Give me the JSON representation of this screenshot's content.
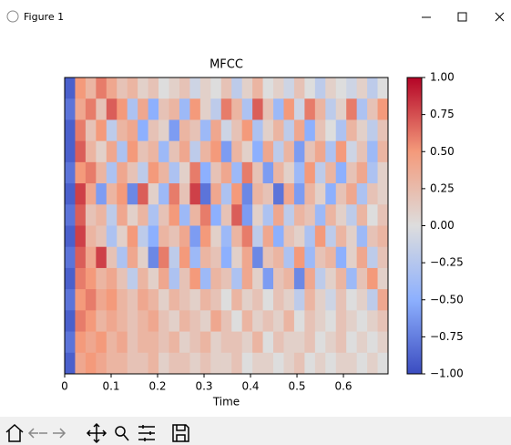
{
  "window_title": "Figure 1",
  "chart_data": {
    "type": "heatmap",
    "title": "MFCC",
    "x_label": "Time",
    "colormap": "coolwarm",
    "xlim": [
      0,
      0.696
    ],
    "xticks": [
      0,
      0.1,
      0.2,
      0.3,
      0.4,
      0.5,
      0.6
    ],
    "clim": [
      -1,
      1
    ],
    "cticks": [
      {
        "value": -1,
        "label": "−1.00"
      },
      {
        "value": -0.75,
        "label": "−0.75"
      },
      {
        "value": -0.5,
        "label": "−0.50"
      },
      {
        "value": -0.25,
        "label": "−0.25"
      },
      {
        "value": 0,
        "label": "0.00"
      },
      {
        "value": 0.25,
        "label": "0.25"
      },
      {
        "value": 0.5,
        "label": "0.50"
      },
      {
        "value": 0.75,
        "label": "0.75"
      },
      {
        "value": 1,
        "label": "1.00"
      }
    ],
    "z": [
      [
        -0.9,
        0.5,
        0.3,
        0.6,
        0.4,
        0.2,
        0.3,
        0.1,
        0.2,
        0.0,
        0.1,
        0.2,
        -0.1,
        0.1,
        0.0,
        0.2,
        -0.2,
        0.1,
        0.3,
        0.0,
        0.1,
        -0.1,
        0.2,
        0.0,
        -0.2,
        0.1,
        0.0,
        -0.1,
        0.1,
        -0.2,
        0.0
      ],
      [
        -0.8,
        0.4,
        0.6,
        0.2,
        0.7,
        0.5,
        -0.3,
        0.4,
        -0.5,
        0.2,
        0.3,
        -0.4,
        0.5,
        0.1,
        -0.2,
        0.6,
        0.3,
        -0.3,
        0.7,
        0.2,
        -0.4,
        0.5,
        -0.1,
        0.6,
        0.3,
        -0.2,
        0.1,
        0.6,
        -0.3,
        0.2,
        0.5
      ],
      [
        -0.9,
        0.6,
        0.2,
        0.5,
        -0.2,
        0.3,
        0.4,
        -0.5,
        0.2,
        0.1,
        -0.6,
        0.3,
        0.2,
        -0.4,
        0.4,
        -0.1,
        0.2,
        0.5,
        -0.3,
        0.1,
        0.3,
        -0.2,
        0.4,
        -0.5,
        0.2,
        0.0,
        -0.3,
        0.3,
        0.1,
        -0.2,
        0.2
      ],
      [
        -0.9,
        0.7,
        0.3,
        0.1,
        0.4,
        -0.3,
        0.5,
        0.2,
        0.3,
        -0.4,
        0.2,
        0.4,
        -0.2,
        0.3,
        0.5,
        -0.6,
        0.3,
        0.1,
        -0.5,
        0.4,
        -0.2,
        0.3,
        -0.6,
        0.2,
        0.4,
        -0.3,
        0.5,
        -0.1,
        0.2,
        -0.4,
        0.3
      ],
      [
        -0.8,
        0.5,
        0.6,
        0.3,
        -0.3,
        0.4,
        0.2,
        -0.2,
        0.5,
        0.3,
        -0.3,
        0.1,
        0.6,
        -0.5,
        0.2,
        0.4,
        -0.4,
        0.6,
        0.2,
        -0.6,
        0.3,
        0.1,
        -0.4,
        0.5,
        -0.2,
        0.3,
        -0.5,
        0.2,
        0.4,
        -0.3,
        0.1
      ],
      [
        -0.9,
        0.8,
        0.4,
        -0.6,
        0.3,
        0.5,
        -0.7,
        0.7,
        0.1,
        -0.4,
        0.6,
        0.2,
        0.8,
        -0.8,
        0.4,
        -0.3,
        0.5,
        -0.7,
        0.3,
        0.2,
        -0.8,
        0.4,
        -0.6,
        0.3,
        0.1,
        -0.5,
        0.2,
        0.4,
        -0.3,
        0.2,
        0.1
      ],
      [
        -0.8,
        0.7,
        0.2,
        0.3,
        -0.2,
        0.4,
        0.1,
        0.3,
        -0.3,
        0.2,
        0.5,
        -0.4,
        0.3,
        0.6,
        -0.5,
        0.2,
        0.7,
        -0.6,
        0.1,
        -0.3,
        0.4,
        -0.2,
        0.3,
        0.2,
        -0.4,
        0.3,
        0.1,
        -0.2,
        0.3,
        0.0,
        0.2
      ],
      [
        -0.9,
        0.8,
        0.3,
        0.2,
        -0.3,
        0.1,
        0.5,
        -0.2,
        -0.5,
        0.3,
        0.2,
        0.4,
        -0.6,
        0.5,
        0.1,
        -0.4,
        0.3,
        0.6,
        -0.2,
        0.4,
        -0.5,
        0.2,
        0.1,
        -0.3,
        0.5,
        -0.2,
        0.3,
        0.1,
        -0.4,
        0.2,
        0.3
      ],
      [
        -0.8,
        0.7,
        0.4,
        0.8,
        0.2,
        -0.3,
        0.4,
        0.1,
        -0.7,
        0.6,
        -0.2,
        0.5,
        -0.4,
        0.3,
        0.2,
        -0.5,
        0.1,
        0.4,
        -0.7,
        0.2,
        0.3,
        -0.3,
        0.5,
        -0.4,
        0.2,
        0.3,
        -0.5,
        0.1,
        0.4,
        -0.2,
        0.2
      ],
      [
        -0.9,
        0.6,
        0.5,
        0.3,
        0.4,
        0.2,
        -0.2,
        0.3,
        0.1,
        0.4,
        -0.3,
        0.2,
        0.5,
        -0.4,
        0.3,
        0.2,
        -0.3,
        0.4,
        0.1,
        -0.6,
        0.2,
        0.3,
        -0.7,
        0.4,
        -0.2,
        0.1,
        0.3,
        -0.4,
        0.2,
        0.5,
        0.1
      ],
      [
        -0.8,
        0.5,
        0.6,
        0.4,
        0.5,
        0.3,
        0.2,
        0.4,
        0.3,
        0.1,
        0.3,
        0.2,
        0.1,
        0.3,
        0.2,
        0.0,
        0.3,
        0.1,
        0.2,
        0.0,
        0.2,
        0.1,
        -0.2,
        0.3,
        0.1,
        -0.1,
        0.2,
        0.0,
        0.1,
        -0.2,
        0.4
      ],
      [
        -0.9,
        0.6,
        0.5,
        0.3,
        0.4,
        0.3,
        0.2,
        0.3,
        0.4,
        0.2,
        0.1,
        0.3,
        0.2,
        0.1,
        0.4,
        0.2,
        0.0,
        0.3,
        0.1,
        0.2,
        0.1,
        0.3,
        0.0,
        0.2,
        0.1,
        0.0,
        0.2,
        0.1,
        0.0,
        0.1,
        0.2
      ],
      [
        -0.8,
        0.5,
        0.4,
        0.5,
        0.3,
        0.4,
        0.2,
        0.3,
        0.3,
        0.2,
        0.3,
        0.1,
        0.2,
        0.3,
        0.1,
        0.2,
        0.2,
        0.1,
        0.3,
        0.0,
        0.2,
        0.1,
        0.1,
        0.2,
        0.0,
        0.1,
        0.2,
        0.0,
        0.1,
        0.0,
        0.1
      ],
      [
        -0.9,
        0.4,
        0.5,
        0.4,
        0.3,
        0.3,
        0.2,
        0.2,
        0.3,
        0.1,
        0.2,
        0.2,
        0.1,
        0.2,
        0.1,
        0.1,
        0.2,
        0.0,
        0.1,
        0.1,
        0.0,
        0.1,
        0.2,
        0.0,
        0.1,
        0.0,
        0.1,
        0.1,
        0.0,
        0.1,
        0.0
      ]
    ]
  }
}
